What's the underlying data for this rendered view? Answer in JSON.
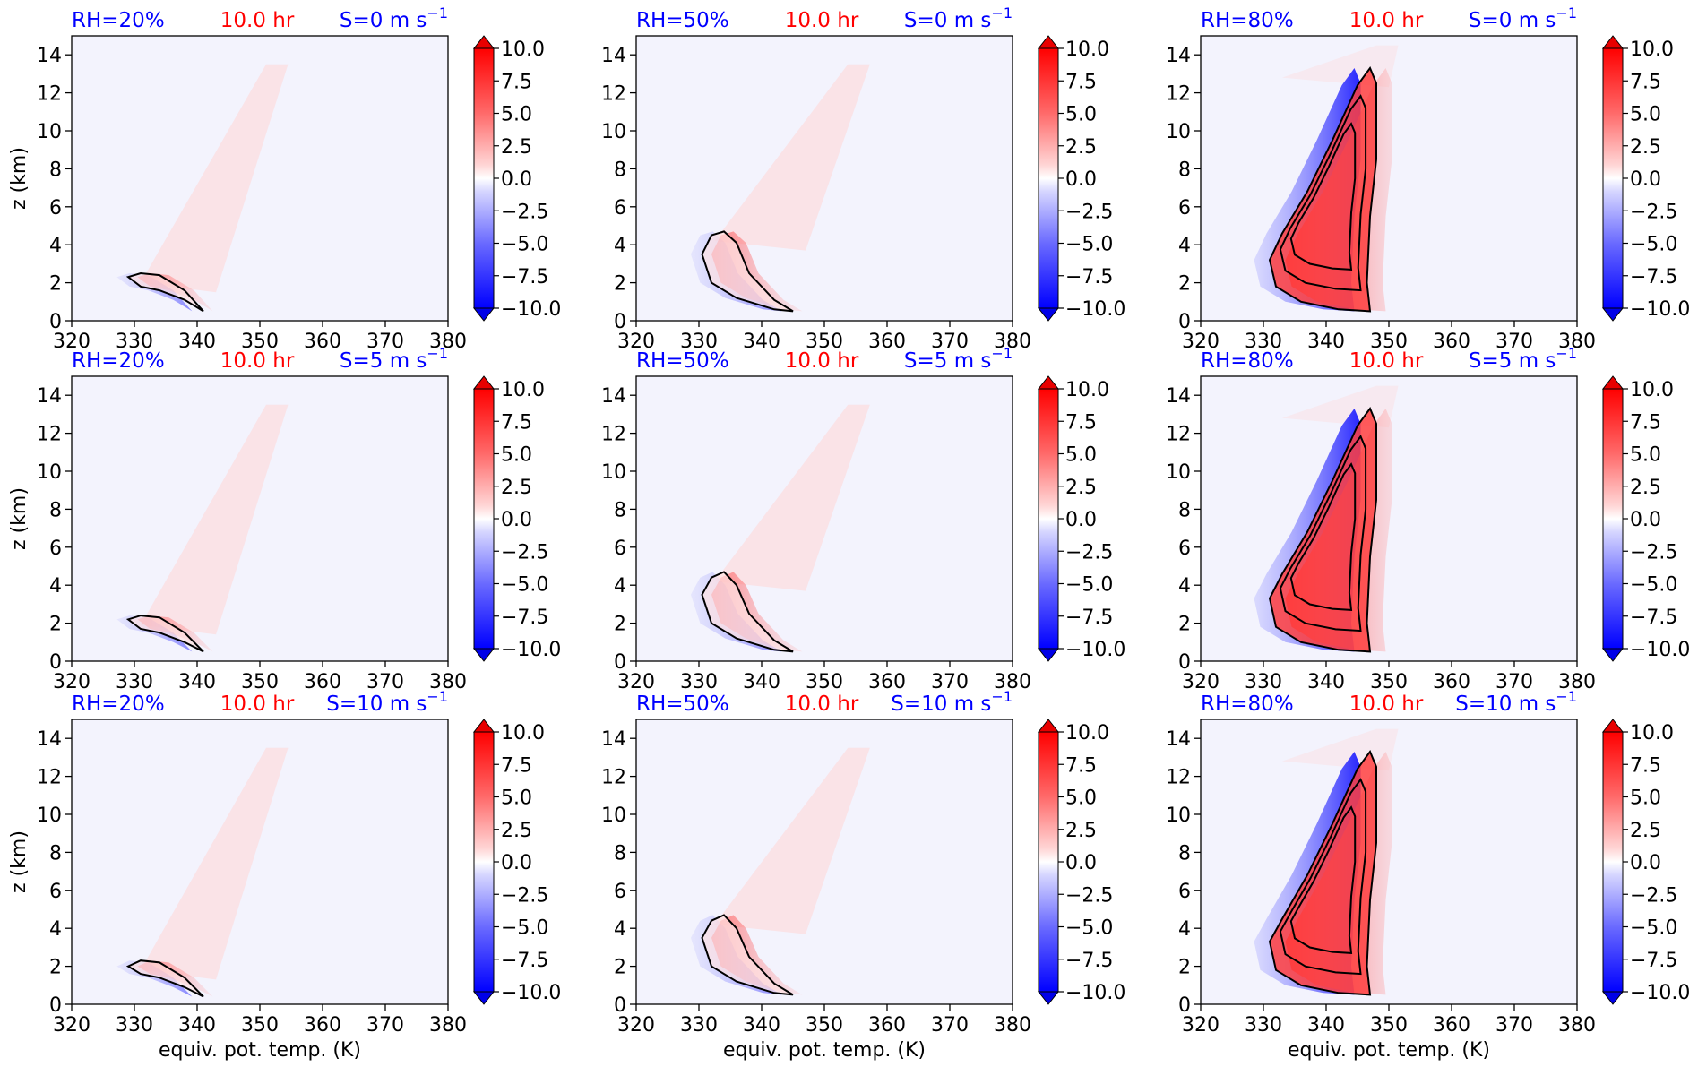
{
  "figure": {
    "ylabel": "z (km)",
    "xlabel": "equiv. pot. temp. (K)",
    "colors": {
      "blue_title": "#0000ff",
      "red_title": "#ff0000",
      "background": "#f3f3fd",
      "contour": "#000000"
    }
  },
  "chart_data": [
    {
      "type": "heatmap",
      "rh": "RH=20%",
      "time": "10.0 hr",
      "shear_prefix": "S=0 m s",
      "shear_sup": "−1",
      "xlabel": "",
      "ylabel": "z (km)",
      "xlim": [
        320,
        380
      ],
      "ylim": [
        0,
        15
      ],
      "x_ticks": [
        "320",
        "330",
        "340",
        "350",
        "360",
        "370",
        "380"
      ],
      "y_ticks": [
        "0",
        "2",
        "4",
        "6",
        "8",
        "10",
        "12",
        "14"
      ],
      "cbar_ticks": [
        "10.0",
        "7.5",
        "5.0",
        "2.5",
        "0.0",
        "−2.5",
        "−5.0",
        "−7.5",
        "−10.0"
      ],
      "cbar_range": [
        -10,
        10
      ],
      "contour": [
        [
          329,
          2.3
        ],
        [
          331,
          2.5
        ],
        [
          334,
          2.4
        ],
        [
          338,
          1.6
        ],
        [
          341,
          0.5
        ],
        [
          338,
          1.1
        ],
        [
          334,
          1.6
        ],
        [
          331,
          1.8
        ]
      ]
    },
    {
      "type": "heatmap",
      "rh": "RH=50%",
      "time": "10.0 hr",
      "shear_prefix": "S=0 m s",
      "shear_sup": "−1",
      "xlabel": "",
      "ylabel": "",
      "xlim": [
        320,
        380
      ],
      "ylim": [
        0,
        15
      ],
      "x_ticks": [
        "320",
        "330",
        "340",
        "350",
        "360",
        "370",
        "380"
      ],
      "y_ticks": [
        "0",
        "2",
        "4",
        "6",
        "8",
        "10",
        "12",
        "14"
      ],
      "cbar_ticks": [
        "10.0",
        "7.5",
        "5.0",
        "2.5",
        "0.0",
        "−2.5",
        "−5.0",
        "−7.5",
        "−10.0"
      ],
      "cbar_range": [
        -10,
        10
      ],
      "contour": [
        [
          330.5,
          3.5
        ],
        [
          332,
          4.5
        ],
        [
          334,
          4.7
        ],
        [
          336,
          4.1
        ],
        [
          338,
          2.5
        ],
        [
          342,
          1.1
        ],
        [
          345,
          0.5
        ],
        [
          342,
          0.6
        ],
        [
          336,
          1.2
        ],
        [
          332,
          2.0
        ]
      ]
    },
    {
      "type": "heatmap",
      "rh": "RH=80%",
      "time": "10.0 hr",
      "shear_prefix": "S=0 m s",
      "shear_sup": "−1",
      "xlabel": "",
      "ylabel": "",
      "xlim": [
        320,
        380
      ],
      "ylim": [
        0,
        15
      ],
      "x_ticks": [
        "320",
        "330",
        "340",
        "350",
        "360",
        "370",
        "380"
      ],
      "y_ticks": [
        "0",
        "2",
        "4",
        "6",
        "8",
        "10",
        "12",
        "14"
      ],
      "cbar_ticks": [
        "10.0",
        "7.5",
        "5.0",
        "2.5",
        "0.0",
        "−2.5",
        "−5.0",
        "−7.5",
        "−10.0"
      ],
      "cbar_range": [
        -10,
        10
      ],
      "contour": [
        [
          331,
          3.2
        ],
        [
          333,
          4.6
        ],
        [
          337,
          6.8
        ],
        [
          341,
          9.5
        ],
        [
          345,
          12.4
        ],
        [
          347,
          13.3
        ],
        [
          348,
          12.5
        ],
        [
          348,
          8.5
        ],
        [
          347,
          5.5
        ],
        [
          346.5,
          2.0
        ],
        [
          347,
          0.5
        ],
        [
          342,
          0.6
        ],
        [
          336,
          1.0
        ],
        [
          332,
          1.8
        ]
      ]
    },
    {
      "type": "heatmap",
      "rh": "RH=20%",
      "time": "10.0 hr",
      "shear_prefix": "S=5 m s",
      "shear_sup": "−1",
      "xlabel": "",
      "ylabel": "z (km)",
      "xlim": [
        320,
        380
      ],
      "ylim": [
        0,
        15
      ],
      "x_ticks": [
        "320",
        "330",
        "340",
        "350",
        "360",
        "370",
        "380"
      ],
      "y_ticks": [
        "0",
        "2",
        "4",
        "6",
        "8",
        "10",
        "12",
        "14"
      ],
      "cbar_ticks": [
        "10.0",
        "7.5",
        "5.0",
        "2.5",
        "0.0",
        "−2.5",
        "−5.0",
        "−7.5",
        "−10.0"
      ],
      "cbar_range": [
        -10,
        10
      ],
      "contour": [
        [
          329,
          2.2
        ],
        [
          331,
          2.4
        ],
        [
          334,
          2.3
        ],
        [
          338,
          1.5
        ],
        [
          341,
          0.5
        ],
        [
          338,
          1.0
        ],
        [
          334,
          1.5
        ],
        [
          331,
          1.7
        ]
      ]
    },
    {
      "type": "heatmap",
      "rh": "RH=50%",
      "time": "10.0 hr",
      "shear_prefix": "S=5 m s",
      "shear_sup": "−1",
      "xlabel": "",
      "ylabel": "",
      "xlim": [
        320,
        380
      ],
      "ylim": [
        0,
        15
      ],
      "x_ticks": [
        "320",
        "330",
        "340",
        "350",
        "360",
        "370",
        "380"
      ],
      "y_ticks": [
        "0",
        "2",
        "4",
        "6",
        "8",
        "10",
        "12",
        "14"
      ],
      "cbar_ticks": [
        "10.0",
        "7.5",
        "5.0",
        "2.5",
        "0.0",
        "−2.5",
        "−5.0",
        "−7.5",
        "−10.0"
      ],
      "cbar_range": [
        -10,
        10
      ],
      "contour": [
        [
          330.5,
          3.5
        ],
        [
          332,
          4.4
        ],
        [
          334,
          4.7
        ],
        [
          336,
          4.0
        ],
        [
          338,
          2.5
        ],
        [
          342,
          1.1
        ],
        [
          345,
          0.5
        ],
        [
          342,
          0.6
        ],
        [
          336,
          1.2
        ],
        [
          332,
          2.0
        ]
      ]
    },
    {
      "type": "heatmap",
      "rh": "RH=80%",
      "time": "10.0 hr",
      "shear_prefix": "S=5 m s",
      "shear_sup": "−1",
      "xlabel": "",
      "ylabel": "",
      "xlim": [
        320,
        380
      ],
      "ylim": [
        0,
        15
      ],
      "x_ticks": [
        "320",
        "330",
        "340",
        "350",
        "360",
        "370",
        "380"
      ],
      "y_ticks": [
        "0",
        "2",
        "4",
        "6",
        "8",
        "10",
        "12",
        "14"
      ],
      "cbar_ticks": [
        "10.0",
        "7.5",
        "5.0",
        "2.5",
        "0.0",
        "−2.5",
        "−5.0",
        "−7.5",
        "−10.0"
      ],
      "cbar_range": [
        -10,
        10
      ],
      "contour": [
        [
          331,
          3.3
        ],
        [
          333,
          4.6
        ],
        [
          337,
          6.8
        ],
        [
          341,
          9.5
        ],
        [
          345,
          12.4
        ],
        [
          347,
          13.3
        ],
        [
          348,
          12.5
        ],
        [
          348,
          8.5
        ],
        [
          347,
          5.5
        ],
        [
          346.5,
          2.0
        ],
        [
          347,
          0.5
        ],
        [
          342,
          0.6
        ],
        [
          336,
          1.0
        ],
        [
          332,
          1.8
        ]
      ]
    },
    {
      "type": "heatmap",
      "rh": "RH=20%",
      "time": "10.0 hr",
      "shear_prefix": "S=10 m s",
      "shear_sup": "−1",
      "xlabel": "equiv. pot. temp. (K)",
      "ylabel": "z (km)",
      "xlim": [
        320,
        380
      ],
      "ylim": [
        0,
        15
      ],
      "x_ticks": [
        "320",
        "330",
        "340",
        "350",
        "360",
        "370",
        "380"
      ],
      "y_ticks": [
        "0",
        "2",
        "4",
        "6",
        "8",
        "10",
        "12",
        "14"
      ],
      "cbar_ticks": [
        "10.0",
        "7.5",
        "5.0",
        "2.5",
        "0.0",
        "−2.5",
        "−5.0",
        "−7.5",
        "−10.0"
      ],
      "cbar_range": [
        -10,
        10
      ],
      "contour": [
        [
          329,
          2.0
        ],
        [
          331,
          2.3
        ],
        [
          334,
          2.2
        ],
        [
          338,
          1.4
        ],
        [
          341,
          0.4
        ],
        [
          338,
          0.9
        ],
        [
          334,
          1.4
        ],
        [
          331,
          1.6
        ]
      ]
    },
    {
      "type": "heatmap",
      "rh": "RH=50%",
      "time": "10.0 hr",
      "shear_prefix": "S=10 m s",
      "shear_sup": "−1",
      "xlabel": "equiv. pot. temp. (K)",
      "ylabel": "",
      "xlim": [
        320,
        380
      ],
      "ylim": [
        0,
        15
      ],
      "x_ticks": [
        "320",
        "330",
        "340",
        "350",
        "360",
        "370",
        "380"
      ],
      "y_ticks": [
        "0",
        "2",
        "4",
        "6",
        "8",
        "10",
        "12",
        "14"
      ],
      "cbar_ticks": [
        "10.0",
        "7.5",
        "5.0",
        "2.5",
        "0.0",
        "−2.5",
        "−5.0",
        "−7.5",
        "−10.0"
      ],
      "cbar_range": [
        -10,
        10
      ],
      "contour": [
        [
          330.5,
          3.5
        ],
        [
          332,
          4.4
        ],
        [
          334,
          4.7
        ],
        [
          336,
          4.0
        ],
        [
          338,
          2.5
        ],
        [
          342,
          1.1
        ],
        [
          345,
          0.5
        ],
        [
          342,
          0.6
        ],
        [
          336,
          1.2
        ],
        [
          332,
          2.0
        ]
      ]
    },
    {
      "type": "heatmap",
      "rh": "RH=80%",
      "time": "10.0 hr",
      "shear_prefix": "S=10 m s",
      "shear_sup": "−1",
      "xlabel": "equiv. pot. temp. (K)",
      "ylabel": "",
      "xlim": [
        320,
        380
      ],
      "ylim": [
        0,
        15
      ],
      "x_ticks": [
        "320",
        "330",
        "340",
        "350",
        "360",
        "370",
        "380"
      ],
      "y_ticks": [
        "0",
        "2",
        "4",
        "6",
        "8",
        "10",
        "12",
        "14"
      ],
      "cbar_ticks": [
        "10.0",
        "7.5",
        "5.0",
        "2.5",
        "0.0",
        "−2.5",
        "−5.0",
        "−7.5",
        "−10.0"
      ],
      "cbar_range": [
        -10,
        10
      ],
      "contour": [
        [
          331,
          3.3
        ],
        [
          333,
          4.5
        ],
        [
          337,
          6.8
        ],
        [
          341,
          9.5
        ],
        [
          345,
          12.4
        ],
        [
          347,
          13.3
        ],
        [
          348,
          12.5
        ],
        [
          348,
          8.5
        ],
        [
          347,
          5.5
        ],
        [
          346.5,
          2.0
        ],
        [
          347,
          0.5
        ],
        [
          342,
          0.6
        ],
        [
          336,
          1.0
        ],
        [
          332,
          1.8
        ]
      ]
    }
  ]
}
